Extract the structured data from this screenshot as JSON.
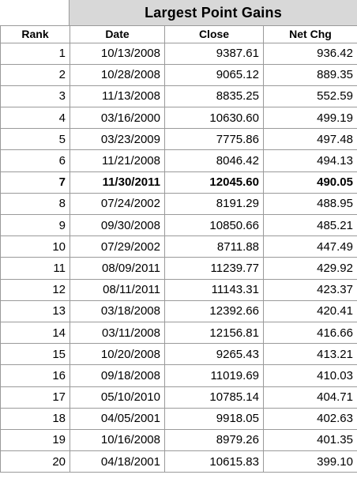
{
  "title": "Largest Point Gains",
  "headers": [
    "Rank",
    "Date",
    "Close",
    "Net Chg"
  ],
  "highlight_rank": "7",
  "rows": [
    {
      "rank": "1",
      "date": "10/13/2008",
      "close": "9387.61",
      "net_chg": "936.42"
    },
    {
      "rank": "2",
      "date": "10/28/2008",
      "close": "9065.12",
      "net_chg": "889.35"
    },
    {
      "rank": "3",
      "date": "11/13/2008",
      "close": "8835.25",
      "net_chg": "552.59"
    },
    {
      "rank": "4",
      "date": "03/16/2000",
      "close": "10630.60",
      "net_chg": "499.19"
    },
    {
      "rank": "5",
      "date": "03/23/2009",
      "close": "7775.86",
      "net_chg": "497.48"
    },
    {
      "rank": "6",
      "date": "11/21/2008",
      "close": "8046.42",
      "net_chg": "494.13"
    },
    {
      "rank": "7",
      "date": "11/30/2011",
      "close": "12045.60",
      "net_chg": "490.05"
    },
    {
      "rank": "8",
      "date": "07/24/2002",
      "close": "8191.29",
      "net_chg": "488.95"
    },
    {
      "rank": "9",
      "date": "09/30/2008",
      "close": "10850.66",
      "net_chg": "485.21"
    },
    {
      "rank": "10",
      "date": "07/29/2002",
      "close": "8711.88",
      "net_chg": "447.49"
    },
    {
      "rank": "11",
      "date": "08/09/2011",
      "close": "11239.77",
      "net_chg": "429.92"
    },
    {
      "rank": "12",
      "date": "08/11/2011",
      "close": "11143.31",
      "net_chg": "423.37"
    },
    {
      "rank": "13",
      "date": "03/18/2008",
      "close": "12392.66",
      "net_chg": "420.41"
    },
    {
      "rank": "14",
      "date": "03/11/2008",
      "close": "12156.81",
      "net_chg": "416.66"
    },
    {
      "rank": "15",
      "date": "10/20/2008",
      "close": "9265.43",
      "net_chg": "413.21"
    },
    {
      "rank": "16",
      "date": "09/18/2008",
      "close": "11019.69",
      "net_chg": "410.03"
    },
    {
      "rank": "17",
      "date": "05/10/2010",
      "close": "10785.14",
      "net_chg": "404.71"
    },
    {
      "rank": "18",
      "date": "04/05/2001",
      "close": "9918.05",
      "net_chg": "402.63"
    },
    {
      "rank": "19",
      "date": "10/16/2008",
      "close": "8979.26",
      "net_chg": "401.35"
    },
    {
      "rank": "20",
      "date": "04/18/2001",
      "close": "10615.83",
      "net_chg": "399.10"
    }
  ]
}
